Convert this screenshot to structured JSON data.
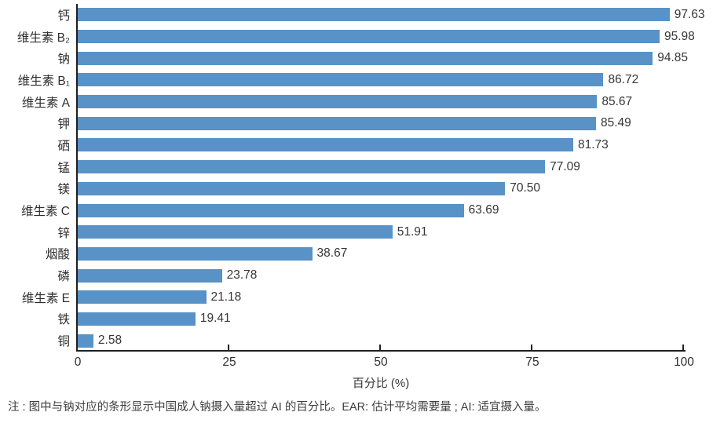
{
  "chart_data": {
    "type": "bar",
    "orientation": "horizontal",
    "categories": [
      "钙",
      "维生素 B₂",
      "钠",
      "维生素 B₁",
      "维生素 A",
      "钾",
      "硒",
      "锰",
      "镁",
      "维生素 C",
      "锌",
      "烟酸",
      "磷",
      "维生素 E",
      "铁",
      "铜"
    ],
    "values": [
      97.63,
      95.98,
      94.85,
      86.72,
      85.67,
      85.49,
      81.73,
      77.09,
      70.5,
      63.69,
      51.91,
      38.67,
      23.78,
      21.18,
      19.41,
      2.58
    ],
    "value_labels": [
      "97.63",
      "95.98",
      "94.85",
      "86.72",
      "85.67",
      "85.49",
      "81.73",
      "77.09",
      "70.50",
      "63.69",
      "51.91",
      "38.67",
      "23.78",
      "21.18",
      "19.41",
      "2.58"
    ],
    "title": "",
    "xlabel": "百分比 (%)",
    "ylabel": "",
    "xlim": [
      0,
      100
    ],
    "x_ticks": [
      0,
      25,
      50,
      75,
      100
    ],
    "grid": false,
    "legend": null,
    "bar_color": "#5892C6",
    "axis_color": "#1f1f1f"
  },
  "note": "注 : 图中与钠对应的条形显示中国成人钠摄入量超过 AI 的百分比。EAR: 估计平均需要量 ; AI: 适宜摄入量。"
}
